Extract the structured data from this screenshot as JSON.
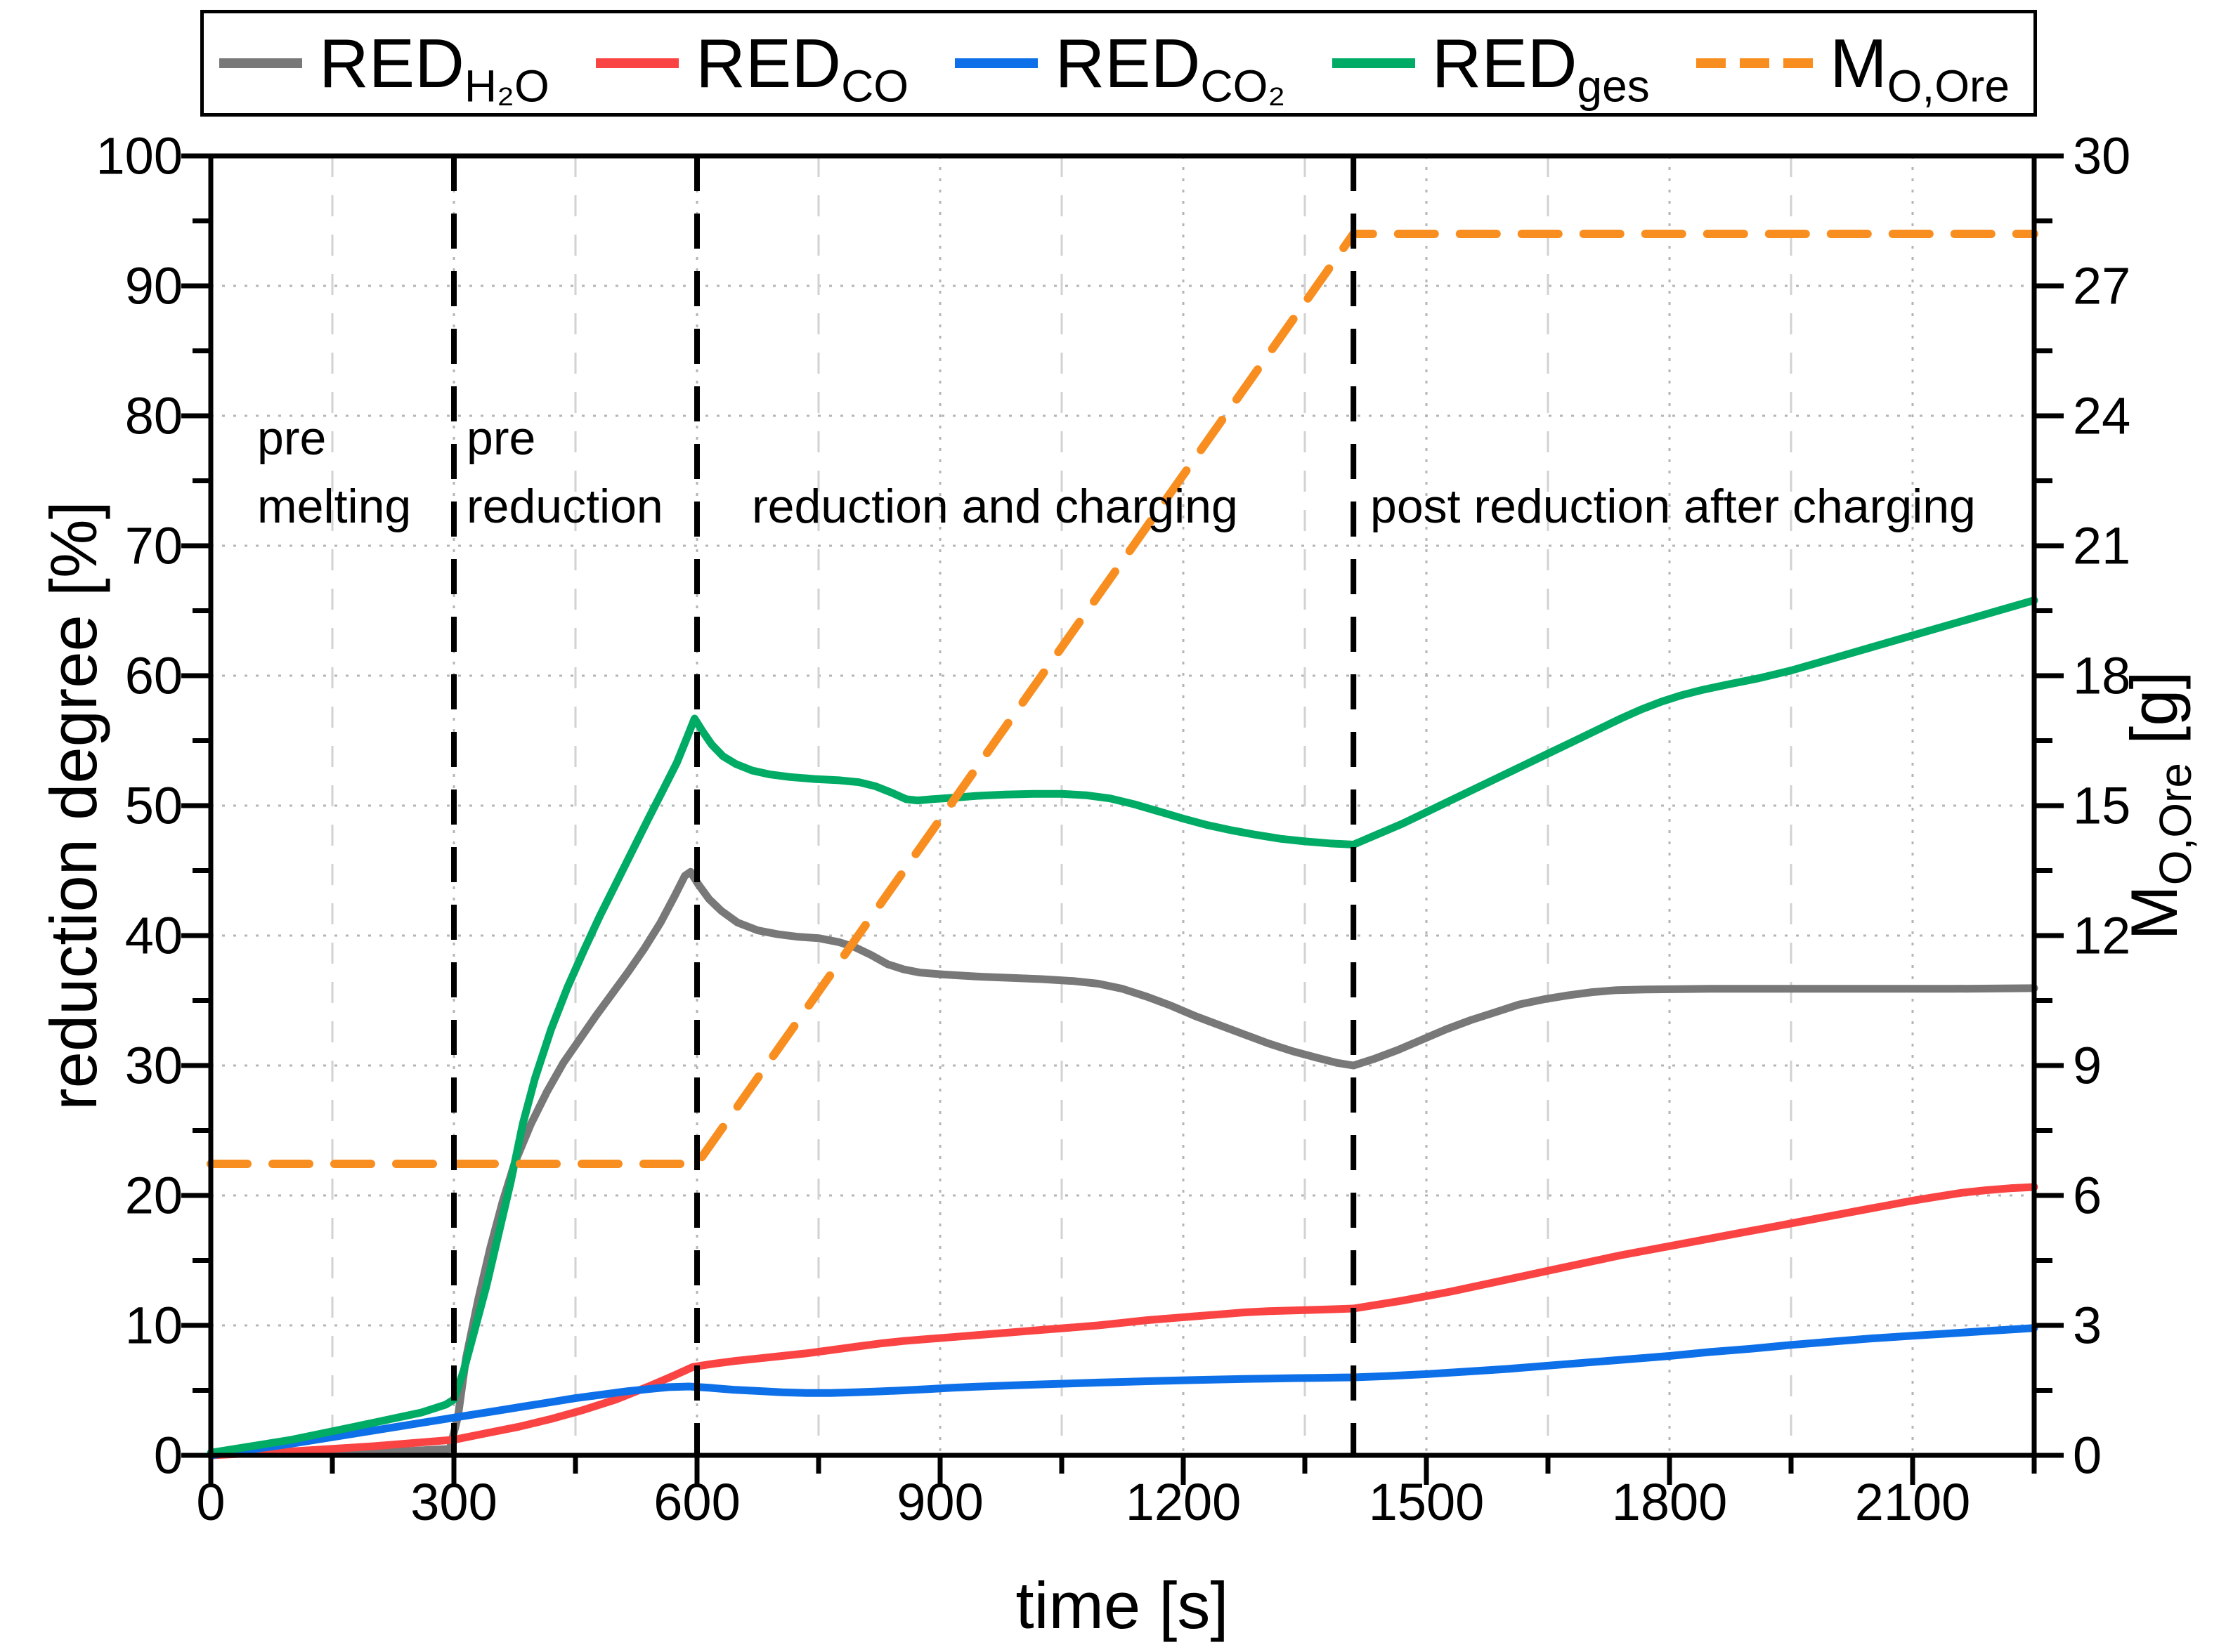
{
  "legend": {
    "items": [
      {
        "main": "RED",
        "sub": "H₂O"
      },
      {
        "main": "RED",
        "sub": "CO"
      },
      {
        "main": "RED",
        "sub": "CO₂"
      },
      {
        "main": "RED",
        "sub": "ges"
      },
      {
        "main": "M",
        "sub": "O,Ore"
      }
    ]
  },
  "axes": {
    "x": {
      "title": "time [s]",
      "tick_labels": [
        "0",
        "300",
        "600",
        "900",
        "1200",
        "1500",
        "1800",
        "2100"
      ]
    },
    "left": {
      "title": "reduction degree [%]",
      "tick_labels": [
        "0",
        "10",
        "20",
        "30",
        "40",
        "50",
        "60",
        "70",
        "80",
        "90",
        "100"
      ]
    },
    "right": {
      "title_main": "M",
      "title_sub": "O,Ore",
      "title_unit": " [g]",
      "tick_labels": [
        "0",
        "3",
        "6",
        "9",
        "12",
        "15",
        "18",
        "21",
        "24",
        "27",
        "30"
      ]
    }
  },
  "regions": [
    {
      "lines": [
        "pre",
        "melting"
      ]
    },
    {
      "lines": [
        "pre",
        "reduction"
      ]
    },
    {
      "lines": [
        "reduction and charging"
      ]
    },
    {
      "lines": [
        "post reduction after charging"
      ]
    }
  ],
  "chart_data": {
    "type": "line",
    "xlabel": "time [s]",
    "ylabel_left": "reduction degree [%]",
    "ylabel_right": "M_O,Ore [g]",
    "x_range": [
      0,
      2250
    ],
    "y_left_range": [
      0,
      100
    ],
    "y_right_range": [
      0,
      30
    ],
    "x_ticks": [
      0,
      300,
      600,
      900,
      1200,
      1500,
      1800,
      2100
    ],
    "x_minor_step": 150,
    "y_left_ticks": [
      0,
      10,
      20,
      30,
      40,
      50,
      60,
      70,
      80,
      90,
      100
    ],
    "y_left_minor_step": 5,
    "y_right_ticks": [
      0,
      3,
      6,
      9,
      12,
      15,
      18,
      21,
      24,
      27,
      30
    ],
    "y_right_minor_step": 1.5,
    "grid": {
      "h_major": true,
      "v_major": true,
      "v_minor": true
    },
    "phase_lines": [
      300,
      600,
      1410
    ],
    "phase_line_color": "#000000",
    "series": [
      {
        "name": "RED_H2O",
        "axis": "left",
        "color": "#787878",
        "style": "solid",
        "points": [
          [
            0,
            0.1
          ],
          [
            150,
            0.25
          ],
          [
            250,
            0.35
          ],
          [
            295,
            0.5
          ],
          [
            305,
            3
          ],
          [
            315,
            7.5
          ],
          [
            330,
            12
          ],
          [
            345,
            16
          ],
          [
            360,
            19.5
          ],
          [
            375,
            22.5
          ],
          [
            395,
            25.5
          ],
          [
            415,
            28
          ],
          [
            435,
            30.2
          ],
          [
            455,
            32
          ],
          [
            475,
            33.8
          ],
          [
            495,
            35.5
          ],
          [
            515,
            37.2
          ],
          [
            535,
            39
          ],
          [
            555,
            41
          ],
          [
            572,
            43
          ],
          [
            585,
            44.6
          ],
          [
            592,
            44.9
          ],
          [
            602,
            43.9
          ],
          [
            615,
            42.8
          ],
          [
            630,
            41.9
          ],
          [
            650,
            41
          ],
          [
            675,
            40.4
          ],
          [
            700,
            40.1
          ],
          [
            725,
            39.9
          ],
          [
            750,
            39.8
          ],
          [
            775,
            39.5
          ],
          [
            795,
            39.1
          ],
          [
            815,
            38.5
          ],
          [
            835,
            37.8
          ],
          [
            855,
            37.4
          ],
          [
            875,
            37.15
          ],
          [
            905,
            37
          ],
          [
            945,
            36.85
          ],
          [
            985,
            36.75
          ],
          [
            1025,
            36.65
          ],
          [
            1065,
            36.5
          ],
          [
            1095,
            36.3
          ],
          [
            1125,
            35.9
          ],
          [
            1155,
            35.3
          ],
          [
            1185,
            34.6
          ],
          [
            1215,
            33.8
          ],
          [
            1245,
            33.1
          ],
          [
            1275,
            32.4
          ],
          [
            1305,
            31.7
          ],
          [
            1335,
            31.1
          ],
          [
            1365,
            30.6
          ],
          [
            1390,
            30.2
          ],
          [
            1410,
            30
          ],
          [
            1435,
            30.5
          ],
          [
            1465,
            31.2
          ],
          [
            1495,
            32
          ],
          [
            1525,
            32.8
          ],
          [
            1555,
            33.5
          ],
          [
            1585,
            34.1
          ],
          [
            1615,
            34.7
          ],
          [
            1645,
            35.1
          ],
          [
            1675,
            35.4
          ],
          [
            1705,
            35.65
          ],
          [
            1735,
            35.8
          ],
          [
            1770,
            35.85
          ],
          [
            1850,
            35.9
          ],
          [
            1950,
            35.9
          ],
          [
            2050,
            35.9
          ],
          [
            2150,
            35.9
          ],
          [
            2250,
            35.95
          ]
        ]
      },
      {
        "name": "RED_CO",
        "axis": "left",
        "color": "#fa4343",
        "style": "solid",
        "points": [
          [
            0,
            0
          ],
          [
            100,
            0.3
          ],
          [
            200,
            0.7
          ],
          [
            300,
            1.2
          ],
          [
            340,
            1.7
          ],
          [
            380,
            2.2
          ],
          [
            420,
            2.8
          ],
          [
            460,
            3.5
          ],
          [
            500,
            4.3
          ],
          [
            540,
            5.3
          ],
          [
            570,
            6.1
          ],
          [
            595,
            6.8
          ],
          [
            615,
            7
          ],
          [
            645,
            7.25
          ],
          [
            675,
            7.45
          ],
          [
            705,
            7.65
          ],
          [
            735,
            7.85
          ],
          [
            765,
            8.1
          ],
          [
            795,
            8.35
          ],
          [
            825,
            8.6
          ],
          [
            855,
            8.8
          ],
          [
            885,
            8.95
          ],
          [
            915,
            9.1
          ],
          [
            945,
            9.25
          ],
          [
            975,
            9.4
          ],
          [
            1005,
            9.55
          ],
          [
            1035,
            9.7
          ],
          [
            1065,
            9.85
          ],
          [
            1095,
            10
          ],
          [
            1125,
            10.2
          ],
          [
            1155,
            10.4
          ],
          [
            1185,
            10.55
          ],
          [
            1215,
            10.7
          ],
          [
            1245,
            10.85
          ],
          [
            1275,
            11
          ],
          [
            1305,
            11.1
          ],
          [
            1335,
            11.15
          ],
          [
            1365,
            11.2
          ],
          [
            1410,
            11.3
          ],
          [
            1440,
            11.6
          ],
          [
            1470,
            11.9
          ],
          [
            1500,
            12.25
          ],
          [
            1530,
            12.6
          ],
          [
            1560,
            13
          ],
          [
            1590,
            13.4
          ],
          [
            1620,
            13.8
          ],
          [
            1650,
            14.2
          ],
          [
            1680,
            14.6
          ],
          [
            1710,
            15
          ],
          [
            1740,
            15.4
          ],
          [
            1770,
            15.75
          ],
          [
            1800,
            16.1
          ],
          [
            1830,
            16.45
          ],
          [
            1860,
            16.8
          ],
          [
            1890,
            17.15
          ],
          [
            1920,
            17.5
          ],
          [
            1950,
            17.85
          ],
          [
            1980,
            18.2
          ],
          [
            2010,
            18.55
          ],
          [
            2040,
            18.9
          ],
          [
            2070,
            19.25
          ],
          [
            2100,
            19.6
          ],
          [
            2130,
            19.9
          ],
          [
            2160,
            20.2
          ],
          [
            2190,
            20.4
          ],
          [
            2220,
            20.55
          ],
          [
            2250,
            20.65
          ]
        ]
      },
      {
        "name": "RED_CO2",
        "axis": "left",
        "color": "#0e70e8",
        "style": "solid",
        "points": [
          [
            0,
            0
          ],
          [
            100,
            0.9
          ],
          [
            200,
            1.9
          ],
          [
            300,
            2.9
          ],
          [
            330,
            3.2
          ],
          [
            360,
            3.5
          ],
          [
            390,
            3.8
          ],
          [
            420,
            4.1
          ],
          [
            450,
            4.4
          ],
          [
            480,
            4.65
          ],
          [
            510,
            4.9
          ],
          [
            540,
            5.1
          ],
          [
            565,
            5.25
          ],
          [
            590,
            5.3
          ],
          [
            615,
            5.2
          ],
          [
            645,
            5.05
          ],
          [
            675,
            4.95
          ],
          [
            705,
            4.85
          ],
          [
            735,
            4.8
          ],
          [
            765,
            4.8
          ],
          [
            795,
            4.85
          ],
          [
            825,
            4.92
          ],
          [
            855,
            5
          ],
          [
            885,
            5.1
          ],
          [
            915,
            5.2
          ],
          [
            945,
            5.28
          ],
          [
            975,
            5.35
          ],
          [
            1005,
            5.42
          ],
          [
            1035,
            5.48
          ],
          [
            1065,
            5.54
          ],
          [
            1095,
            5.6
          ],
          [
            1125,
            5.65
          ],
          [
            1155,
            5.7
          ],
          [
            1185,
            5.75
          ],
          [
            1215,
            5.8
          ],
          [
            1245,
            5.84
          ],
          [
            1275,
            5.88
          ],
          [
            1305,
            5.91
          ],
          [
            1335,
            5.94
          ],
          [
            1365,
            5.96
          ],
          [
            1410,
            6
          ],
          [
            1450,
            6.1
          ],
          [
            1500,
            6.25
          ],
          [
            1550,
            6.45
          ],
          [
            1600,
            6.65
          ],
          [
            1650,
            6.9
          ],
          [
            1700,
            7.15
          ],
          [
            1750,
            7.4
          ],
          [
            1800,
            7.65
          ],
          [
            1850,
            7.95
          ],
          [
            1900,
            8.2
          ],
          [
            1950,
            8.5
          ],
          [
            2000,
            8.75
          ],
          [
            2050,
            9
          ],
          [
            2100,
            9.2
          ],
          [
            2150,
            9.4
          ],
          [
            2200,
            9.6
          ],
          [
            2250,
            9.8
          ]
        ]
      },
      {
        "name": "RED_ges",
        "axis": "left",
        "color": "#00ab65",
        "style": "solid",
        "points": [
          [
            0,
            0.2
          ],
          [
            100,
            1.2
          ],
          [
            200,
            2.5
          ],
          [
            260,
            3.3
          ],
          [
            290,
            3.9
          ],
          [
            300,
            4.3
          ],
          [
            312,
            6.5
          ],
          [
            325,
            9.5
          ],
          [
            340,
            13
          ],
          [
            355,
            17
          ],
          [
            370,
            21
          ],
          [
            385,
            25.5
          ],
          [
            400,
            29
          ],
          [
            420,
            32.8
          ],
          [
            440,
            36
          ],
          [
            460,
            38.8
          ],
          [
            480,
            41.5
          ],
          [
            500,
            44
          ],
          [
            520,
            46.5
          ],
          [
            540,
            49
          ],
          [
            558,
            51.2
          ],
          [
            575,
            53.3
          ],
          [
            588,
            55.3
          ],
          [
            597,
            56.7
          ],
          [
            607,
            55.7
          ],
          [
            618,
            54.7
          ],
          [
            632,
            53.8
          ],
          [
            648,
            53.2
          ],
          [
            668,
            52.7
          ],
          [
            690,
            52.4
          ],
          [
            715,
            52.2
          ],
          [
            745,
            52.05
          ],
          [
            775,
            51.95
          ],
          [
            800,
            51.8
          ],
          [
            820,
            51.5
          ],
          [
            840,
            51
          ],
          [
            858,
            50.5
          ],
          [
            872,
            50.4
          ],
          [
            890,
            50.5
          ],
          [
            915,
            50.6
          ],
          [
            945,
            50.75
          ],
          [
            980,
            50.85
          ],
          [
            1015,
            50.9
          ],
          [
            1050,
            50.9
          ],
          [
            1080,
            50.8
          ],
          [
            1110,
            50.55
          ],
          [
            1140,
            50.1
          ],
          [
            1170,
            49.55
          ],
          [
            1200,
            49
          ],
          [
            1230,
            48.5
          ],
          [
            1260,
            48.1
          ],
          [
            1290,
            47.75
          ],
          [
            1320,
            47.45
          ],
          [
            1350,
            47.25
          ],
          [
            1380,
            47.1
          ],
          [
            1410,
            47
          ],
          [
            1440,
            47.8
          ],
          [
            1470,
            48.6
          ],
          [
            1500,
            49.5
          ],
          [
            1530,
            50.4
          ],
          [
            1560,
            51.3
          ],
          [
            1590,
            52.2
          ],
          [
            1620,
            53.1
          ],
          [
            1650,
            54
          ],
          [
            1680,
            54.9
          ],
          [
            1710,
            55.8
          ],
          [
            1740,
            56.7
          ],
          [
            1765,
            57.4
          ],
          [
            1790,
            58
          ],
          [
            1815,
            58.5
          ],
          [
            1840,
            58.9
          ],
          [
            1870,
            59.3
          ],
          [
            1910,
            59.8
          ],
          [
            1950,
            60.4
          ],
          [
            2000,
            61.3
          ],
          [
            2050,
            62.2
          ],
          [
            2100,
            63.1
          ],
          [
            2150,
            64
          ],
          [
            2200,
            64.9
          ],
          [
            2250,
            65.8
          ]
        ]
      },
      {
        "name": "M_O,Ore",
        "axis": "right",
        "color": "#f98e20",
        "style": "dashed",
        "points": [
          [
            0,
            6.73
          ],
          [
            600,
            6.73
          ],
          [
            1410,
            28.2
          ],
          [
            2250,
            28.2
          ]
        ]
      }
    ]
  }
}
